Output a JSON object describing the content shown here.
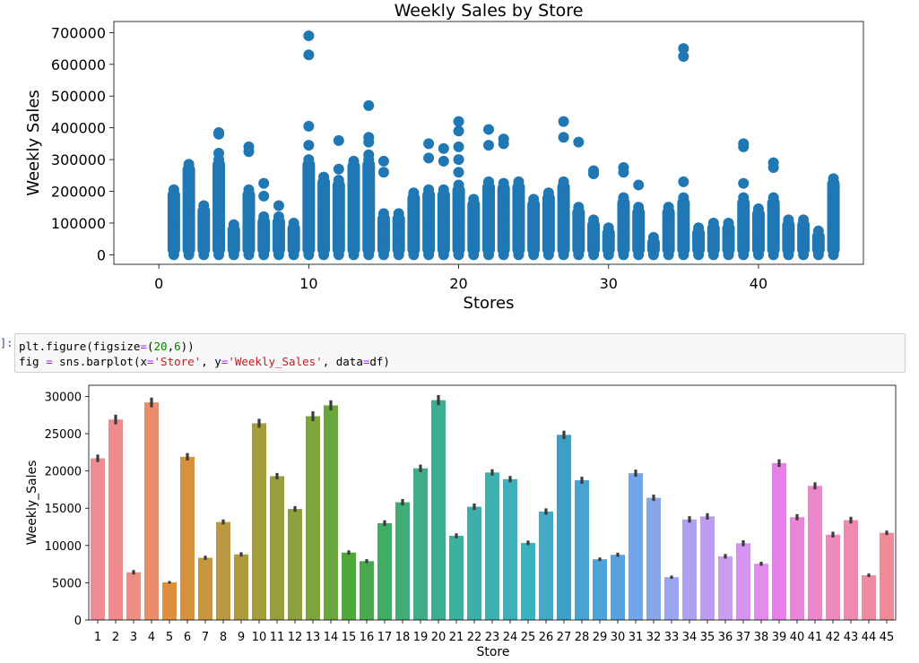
{
  "notebook": {
    "prompt_marker": "]:",
    "code_lines": [
      [
        {
          "t": "plt.figure(figsize",
          "c": "fn"
        },
        {
          "t": "=",
          "c": "op"
        },
        {
          "t": "(",
          "c": "fn"
        },
        {
          "t": "20",
          "c": "num"
        },
        {
          "t": ",",
          "c": "fn"
        },
        {
          "t": "6",
          "c": "num"
        },
        {
          "t": "))",
          "c": "fn"
        }
      ],
      [
        {
          "t": "fig ",
          "c": "fn"
        },
        {
          "t": "=",
          "c": "op"
        },
        {
          "t": " sns.barplot(x",
          "c": "fn"
        },
        {
          "t": "=",
          "c": "op"
        },
        {
          "t": "'Store'",
          "c": "str"
        },
        {
          "t": ", y",
          "c": "fn"
        },
        {
          "t": "=",
          "c": "op"
        },
        {
          "t": "'Weekly_Sales'",
          "c": "str"
        },
        {
          "t": ", data",
          "c": "fn"
        },
        {
          "t": "=",
          "c": "op"
        },
        {
          "t": "df)",
          "c": "fn"
        }
      ]
    ]
  },
  "chart_data": [
    {
      "type": "scatter",
      "title": "Weekly Sales by Store",
      "xlabel": "Stores",
      "ylabel": "Weekly Sales",
      "xlim": [
        -3,
        47
      ],
      "ylim": [
        -30000,
        735000
      ],
      "xticks": [
        0,
        10,
        20,
        30,
        40
      ],
      "yticks": [
        0,
        100000,
        200000,
        300000,
        400000,
        500000,
        600000,
        700000
      ],
      "color": "#1f77b4",
      "dense_max": [
        205000,
        285000,
        155000,
        300000,
        95000,
        205000,
        120000,
        120000,
        100000,
        300000,
        245000,
        235000,
        295000,
        300000,
        130000,
        130000,
        195000,
        205000,
        205000,
        220000,
        175000,
        230000,
        225000,
        230000,
        175000,
        195000,
        230000,
        150000,
        110000,
        85000,
        180000,
        150000,
        55000,
        150000,
        180000,
        85000,
        100000,
        100000,
        180000,
        145000,
        180000,
        110000,
        110000,
        75000,
        240000
      ],
      "outliers": [
        [
          4,
          385000
        ],
        [
          4,
          380000
        ],
        [
          4,
          320000
        ],
        [
          6,
          340000
        ],
        [
          6,
          325000
        ],
        [
          7,
          225000
        ],
        [
          7,
          185000
        ],
        [
          8,
          155000
        ],
        [
          10,
          690000
        ],
        [
          10,
          630000
        ],
        [
          10,
          405000
        ],
        [
          10,
          345000
        ],
        [
          11,
          215000
        ],
        [
          12,
          360000
        ],
        [
          12,
          270000
        ],
        [
          14,
          470000
        ],
        [
          14,
          370000
        ],
        [
          14,
          355000
        ],
        [
          14,
          315000
        ],
        [
          15,
          295000
        ],
        [
          15,
          260000
        ],
        [
          18,
          350000
        ],
        [
          18,
          305000
        ],
        [
          19,
          335000
        ],
        [
          19,
          295000
        ],
        [
          20,
          420000
        ],
        [
          20,
          390000
        ],
        [
          20,
          340000
        ],
        [
          20,
          300000
        ],
        [
          20,
          260000
        ],
        [
          22,
          395000
        ],
        [
          22,
          345000
        ],
        [
          23,
          365000
        ],
        [
          23,
          350000
        ],
        [
          27,
          420000
        ],
        [
          27,
          370000
        ],
        [
          28,
          355000
        ],
        [
          29,
          265000
        ],
        [
          29,
          255000
        ],
        [
          31,
          275000
        ],
        [
          31,
          260000
        ],
        [
          32,
          220000
        ],
        [
          35,
          650000
        ],
        [
          35,
          625000
        ],
        [
          35,
          230000
        ],
        [
          39,
          350000
        ],
        [
          39,
          340000
        ],
        [
          39,
          225000
        ],
        [
          41,
          290000
        ],
        [
          41,
          275000
        ]
      ]
    },
    {
      "type": "bar",
      "title": "",
      "xlabel": "Store",
      "ylabel": "Weekly_Sales",
      "ylim": [
        0,
        31500
      ],
      "yticks": [
        0,
        5000,
        10000,
        15000,
        20000,
        25000,
        30000
      ],
      "categories": [
        "1",
        "2",
        "3",
        "4",
        "5",
        "6",
        "7",
        "8",
        "9",
        "10",
        "11",
        "12",
        "13",
        "14",
        "15",
        "16",
        "17",
        "18",
        "19",
        "20",
        "21",
        "22",
        "23",
        "24",
        "25",
        "26",
        "27",
        "28",
        "29",
        "30",
        "31",
        "32",
        "33",
        "34",
        "35",
        "36",
        "37",
        "38",
        "39",
        "40",
        "41",
        "42",
        "43",
        "44",
        "45"
      ],
      "values": [
        21700,
        26900,
        6400,
        29200,
        5050,
        21900,
        8350,
        13150,
        8800,
        26400,
        19300,
        14900,
        27350,
        28800,
        9050,
        7900,
        13000,
        15800,
        20350,
        29500,
        11300,
        15200,
        19800,
        18900,
        10350,
        14550,
        24850,
        18750,
        8150,
        8750,
        19700,
        16400,
        5750,
        13500,
        13900,
        8550,
        10300,
        7550,
        21050,
        13800,
        18000,
        11450,
        13400,
        6000,
        11700
      ],
      "error": [
        500,
        650,
        300,
        650,
        180,
        500,
        280,
        340,
        290,
        600,
        430,
        380,
        650,
        680,
        290,
        260,
        380,
        430,
        500,
        680,
        330,
        430,
        430,
        430,
        310,
        430,
        560,
        470,
        240,
        280,
        480,
        420,
        210,
        430,
        430,
        310,
        400,
        270,
        510,
        410,
        480,
        400,
        450,
        240,
        300
      ],
      "colors": [
        "#f08a94",
        "#ef8b8f",
        "#ed8e84",
        "#eb8c6b",
        "#e0903d",
        "#d59340",
        "#c99640",
        "#ba9940",
        "#ad9c3f",
        "#a39e3a",
        "#989e3b",
        "#8ba13c",
        "#7ea43c",
        "#6ba63c",
        "#4fa93a",
        "#47ab4d",
        "#40ad65",
        "#40ad77",
        "#3eae87",
        "#3cad92",
        "#3caf9e",
        "#3dafa8",
        "#3eb0b2",
        "#3eb0bb",
        "#3ab3c1",
        "#45a9c6",
        "#3d9fc4",
        "#47a3d2",
        "#4ca3d7",
        "#58a2e2",
        "#71a6e8",
        "#8aa6eb",
        "#9ba5ef",
        "#aea1f1",
        "#bd9df1",
        "#c99df0",
        "#d592ef",
        "#e28cee",
        "#e580e9",
        "#ea86d8",
        "#ec87cb",
        "#ee8abd",
        "#ef89af",
        "#f08aa3",
        "#f08998"
      ]
    }
  ]
}
